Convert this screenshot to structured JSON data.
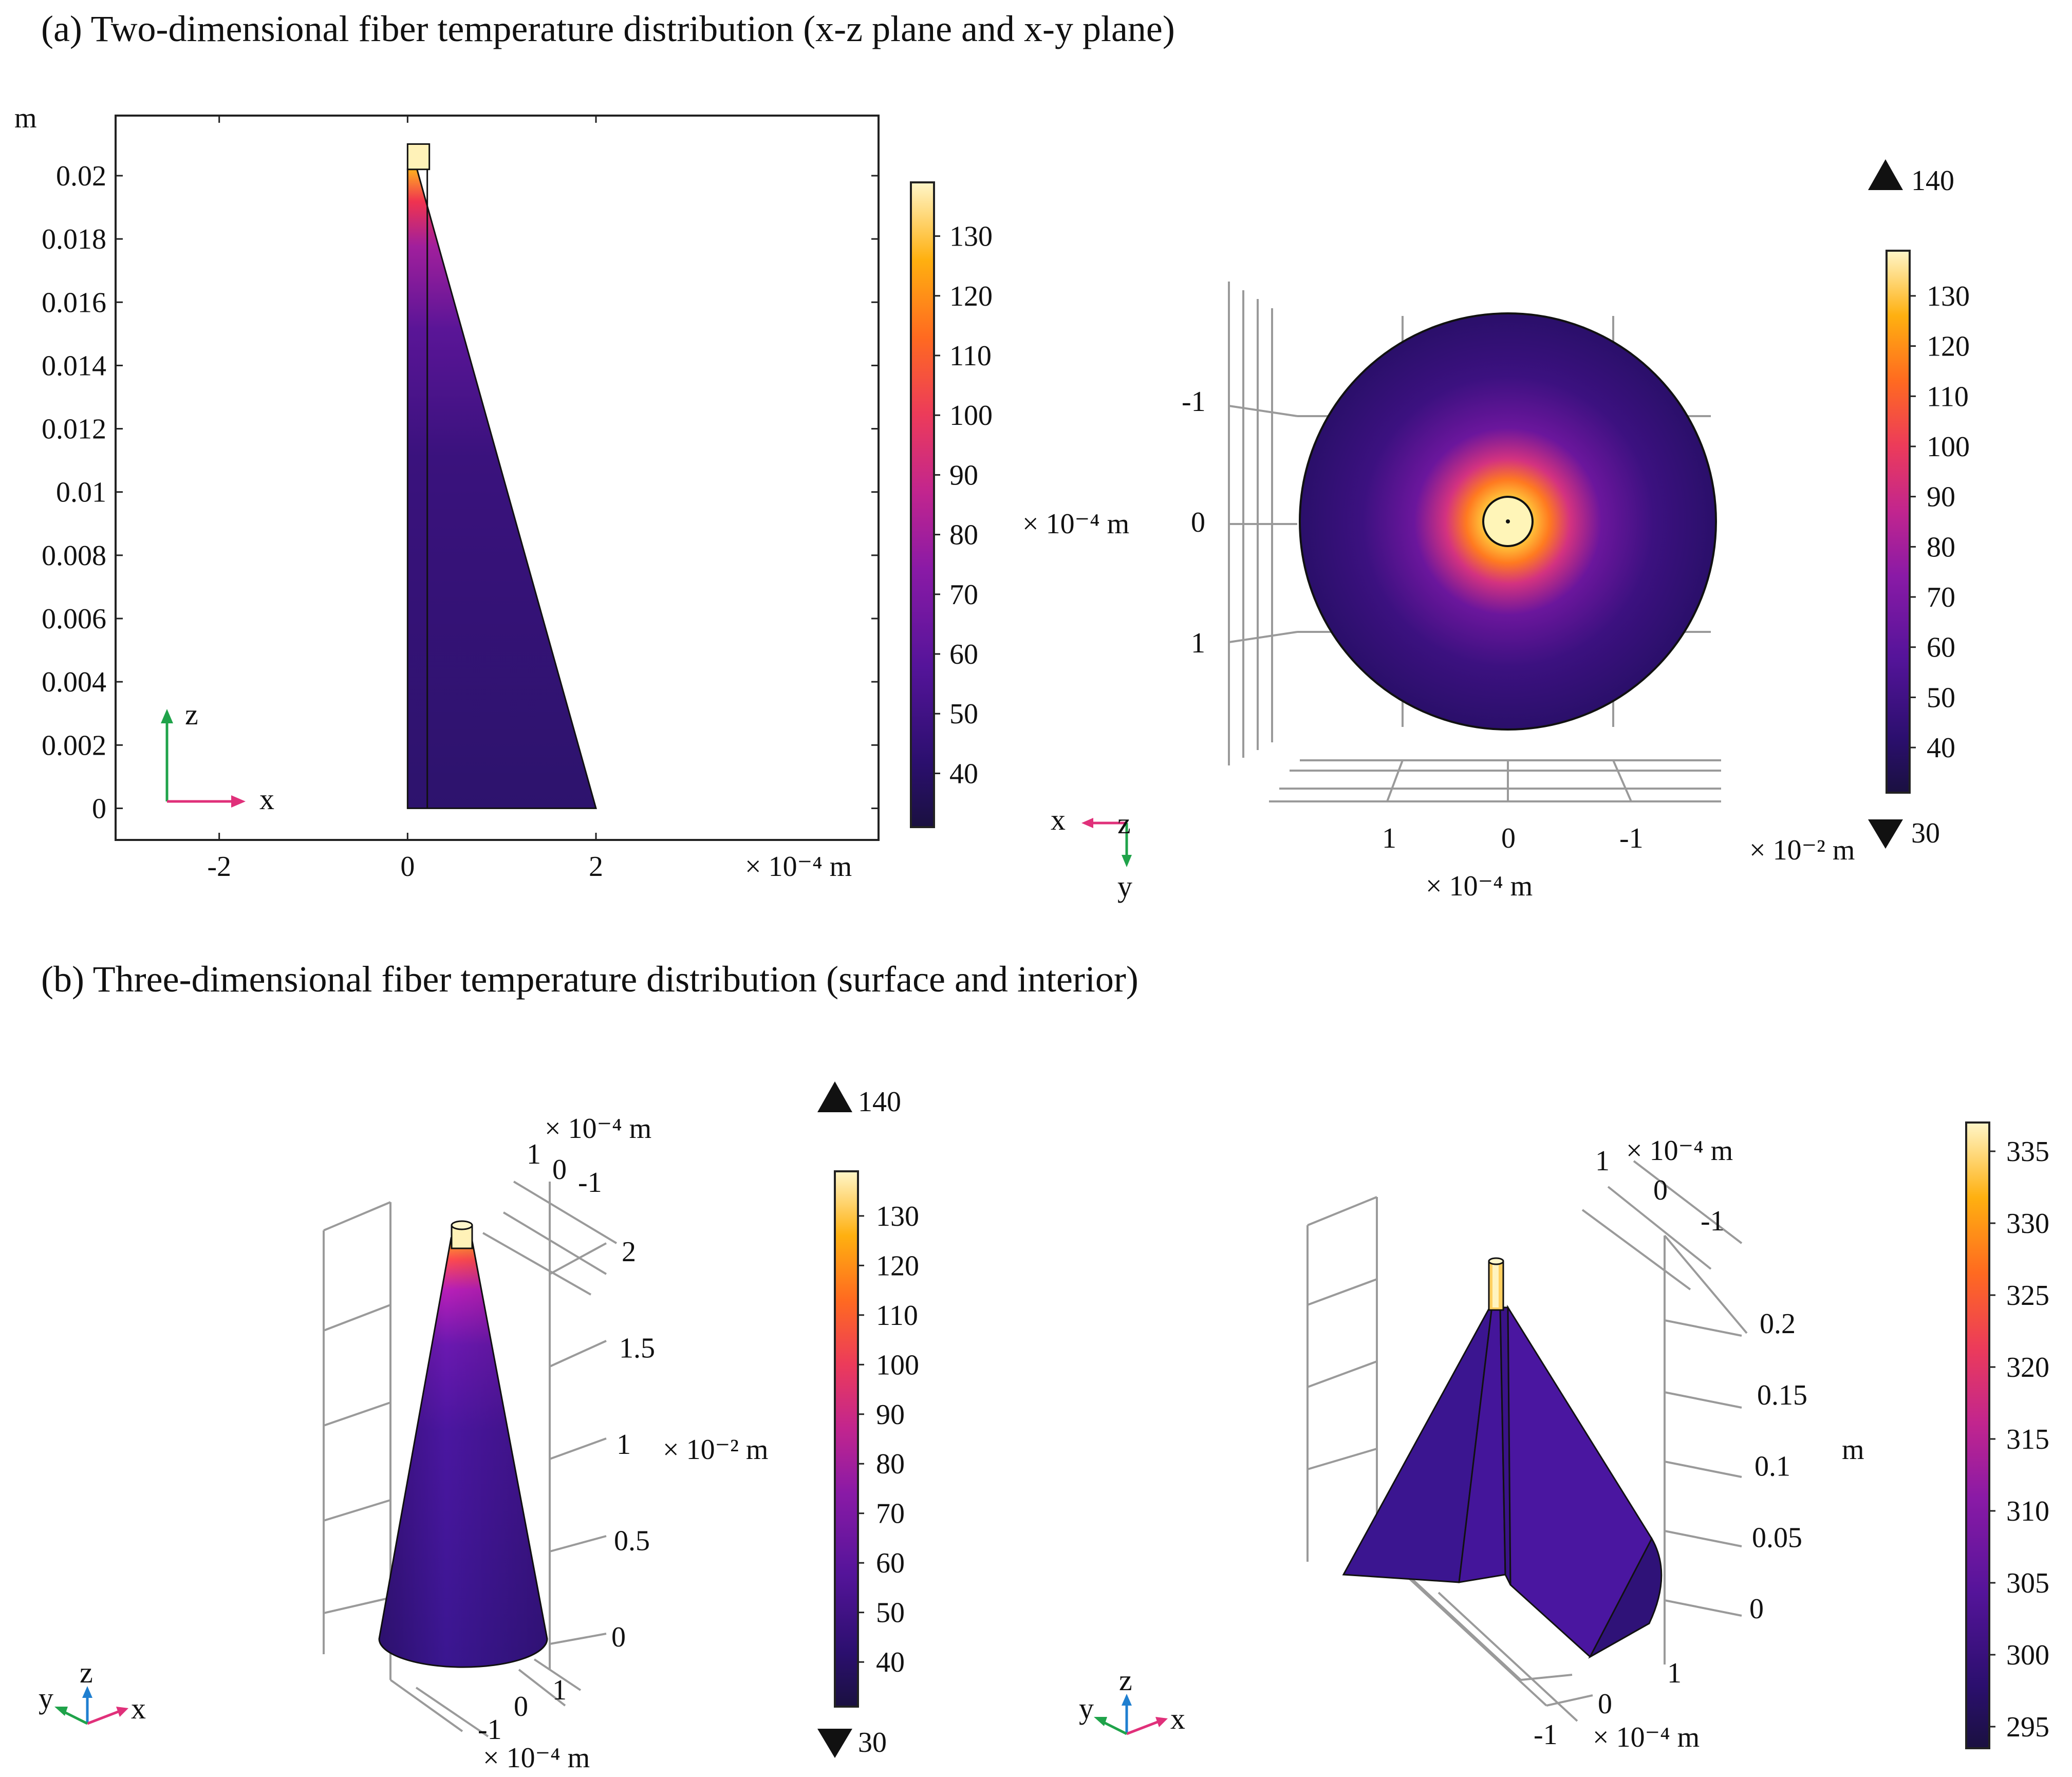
{
  "panel_a": {
    "title": "(a) Two-dimensional fiber temperature distribution (x-z plane and x-y plane)",
    "left_plot": {
      "y_unit": "m",
      "x_unit": "× 10⁻⁴ m",
      "axis_x_label": "x",
      "axis_z_label": "z"
    },
    "right_plot": {
      "x_unit": "× 10⁻⁴ m",
      "y_unit": "× 10⁻⁴ m",
      "extra_unit": "× 10⁻² m",
      "max_marker": "140",
      "min_marker": "30",
      "axis_x_label": "x",
      "axis_y_label": "y",
      "axis_z_label": "z"
    }
  },
  "panel_b": {
    "title": "(b) Three-dimensional fiber temperature distribution (surface and interior)",
    "left_plot": {
      "top_unit": "× 10⁻⁴ m",
      "z_unit": "× 10⁻² m",
      "bottom_unit": "× 10⁻⁴ m",
      "top_ticks": [
        "1",
        "0",
        "-1"
      ],
      "bottom_ticks": [
        "-1",
        "0",
        "1"
      ],
      "max_marker": "140",
      "min_marker": "30",
      "axis_x_label": "x",
      "axis_y_label": "y",
      "axis_z_label": "z"
    },
    "right_plot": {
      "top_unit": "× 10⁻⁴ m",
      "z_unit": "m",
      "bottom_unit": "× 10⁻⁴ m",
      "top_ticks": [
        "1",
        "0",
        "-1"
      ],
      "bottom_ticks": [
        "-1",
        "0",
        "1"
      ],
      "axis_x_label": "x",
      "axis_y_label": "y",
      "axis_z_label": "z"
    }
  },
  "chart_data": [
    {
      "type": "heatmap",
      "title": "Two-dimensional fiber temperature distribution (x-z plane)",
      "xlabel": "x (× 10⁻⁴ m)",
      "ylabel": "z (m)",
      "xlim": [
        -3.1,
        5.0
      ],
      "ylim": [
        -0.001,
        0.0219
      ],
      "x_ticks": [
        -2,
        0,
        2
      ],
      "x_tick_labels": [
        "-2",
        "0",
        "2"
      ],
      "y_ticks": [
        0,
        0.002,
        0.004,
        0.006,
        0.008,
        0.01,
        0.012,
        0.014,
        0.016,
        0.018,
        0.02
      ],
      "y_tick_labels": [
        "0",
        "0.002",
        "0.004",
        "0.006",
        "0.008",
        "0.01",
        "0.012",
        "0.014",
        "0.016",
        "0.018",
        "0.02"
      ],
      "geometry": {
        "fiber_x": [
          0,
          0.1
        ],
        "fiber_z": [
          0,
          0.021
        ],
        "cone_base_x": [
          0,
          2
        ],
        "cone_top_z": 0.0202
      },
      "colorbar": {
        "ticks": [
          40,
          50,
          60,
          70,
          80,
          90,
          100,
          110,
          120,
          130
        ],
        "tick_labels": [
          "40",
          "50",
          "60",
          "70",
          "80",
          "90",
          "100",
          "110",
          "120",
          "130"
        ],
        "range": [
          31,
          139
        ]
      }
    },
    {
      "type": "heatmap",
      "title": "Two-dimensional fiber temperature distribution (x-y plane)",
      "xlabel": "x (× 10⁻⁴ m)",
      "ylabel": "y (× 10⁻⁴ m)",
      "x_ticks": [
        1,
        0,
        -1
      ],
      "x_tick_labels": [
        "1",
        "0",
        "-1"
      ],
      "y_ticks": [
        -1,
        0,
        1
      ],
      "y_tick_labels": [
        "-1",
        "0",
        "1"
      ],
      "geometry": {
        "disk_radius": 1.7,
        "fiber_radius": 0.2
      },
      "colorbar": {
        "ticks": [
          40,
          50,
          60,
          70,
          80,
          90,
          100,
          110,
          120,
          130
        ],
        "tick_labels": [
          "40",
          "50",
          "60",
          "70",
          "80",
          "90",
          "100",
          "110",
          "120",
          "130"
        ],
        "range": [
          31,
          139
        ],
        "max_marker": 140,
        "min_marker": 30
      }
    },
    {
      "type": "heatmap",
      "title": "Three-dimensional fiber temperature distribution (surface)",
      "zlabel": "z (× 10⁻² m)",
      "z_ticks": [
        0,
        0.5,
        1,
        1.5,
        2
      ],
      "z_tick_labels": [
        "0",
        "0.5",
        "1",
        "1.5",
        "2"
      ],
      "colorbar": {
        "ticks": [
          40,
          50,
          60,
          70,
          80,
          90,
          100,
          110,
          120,
          130
        ],
        "tick_labels": [
          "40",
          "50",
          "60",
          "70",
          "80",
          "90",
          "100",
          "110",
          "120",
          "130"
        ],
        "range": [
          31,
          139
        ],
        "max_marker": 140,
        "min_marker": 30
      }
    },
    {
      "type": "heatmap",
      "title": "Three-dimensional fiber temperature distribution (interior)",
      "zlabel": "z (m)",
      "z_ticks": [
        0,
        0.05,
        0.1,
        0.15,
        0.2
      ],
      "z_tick_labels": [
        "0",
        "0.05",
        "0.1",
        "0.15",
        "0.2"
      ],
      "colorbar": {
        "ticks": [
          295,
          300,
          305,
          310,
          315,
          320,
          325,
          330,
          335
        ],
        "tick_labels": [
          "295",
          "300",
          "305",
          "310",
          "315",
          "320",
          "325",
          "330",
          "335"
        ],
        "range": [
          293.5,
          337
        ]
      }
    }
  ]
}
